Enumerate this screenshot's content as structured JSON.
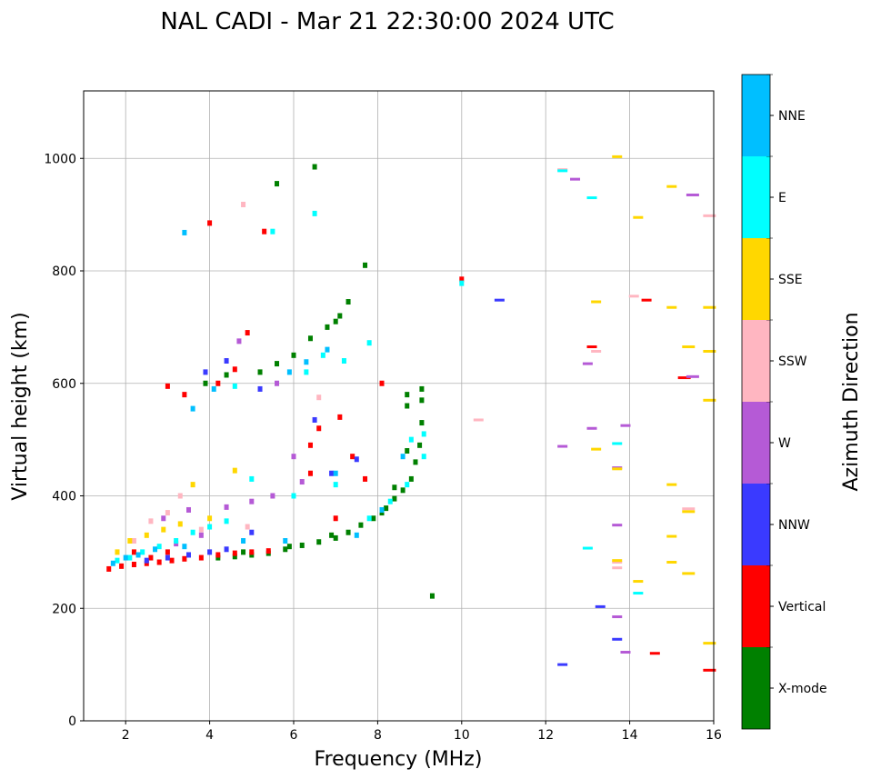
{
  "chart_data": {
    "type": "scatter",
    "title": "NAL CADI - Mar 21 22:30:00 2024 UTC",
    "xlabel": "Frequency (MHz)",
    "ylabel": "Virtual height (km)",
    "xlim": [
      1,
      16
    ],
    "ylim": [
      0,
      1120
    ],
    "xticks": [
      "2",
      "4",
      "6",
      "8",
      "10",
      "12",
      "14",
      "16"
    ],
    "xtick_values": [
      2,
      4,
      6,
      8,
      10,
      12,
      14,
      16
    ],
    "yticks": [
      "0",
      "200",
      "400",
      "600",
      "800",
      "1000"
    ],
    "ytick_values": [
      0,
      200,
      400,
      600,
      800,
      1000
    ],
    "grid": true,
    "colorbar": {
      "label": "Azimuth Direction",
      "categories": [
        "X-mode",
        "Vertical",
        "NNW",
        "W",
        "SSW",
        "SSE",
        "E",
        "NNE"
      ],
      "colors": [
        "#008000",
        "#ff0000",
        "#3a3aff",
        "#b55ad6",
        "#ffb6c1",
        "#ffd700",
        "#00ffff",
        "#00bfff"
      ]
    },
    "points_note": "each point: [frequency MHz, virtual height km, category index]",
    "points": [
      [
        4.2,
        290,
        0
      ],
      [
        4.6,
        292,
        0
      ],
      [
        5,
        295,
        0
      ],
      [
        5.4,
        298,
        0
      ],
      [
        5.8,
        305,
        0
      ],
      [
        6.2,
        312,
        0
      ],
      [
        6.6,
        318,
        0
      ],
      [
        7,
        325,
        0
      ],
      [
        7.3,
        335,
        0
      ],
      [
        7.6,
        348,
        0
      ],
      [
        7.9,
        360,
        0
      ],
      [
        8.2,
        378,
        0
      ],
      [
        8.4,
        395,
        0
      ],
      [
        8.6,
        410,
        0
      ],
      [
        8.8,
        430,
        0
      ],
      [
        8.9,
        460,
        0
      ],
      [
        9,
        490,
        0
      ],
      [
        9.05,
        530,
        0
      ],
      [
        9.05,
        570,
        0
      ],
      [
        9.05,
        590,
        0
      ],
      [
        8.7,
        480,
        0
      ],
      [
        8.7,
        560,
        0
      ],
      [
        8.7,
        580,
        0
      ],
      [
        8.4,
        415,
        0
      ],
      [
        5.2,
        620,
        0
      ],
      [
        5.6,
        635,
        0
      ],
      [
        6,
        650,
        0
      ],
      [
        6.4,
        680,
        0
      ],
      [
        6.8,
        700,
        0
      ],
      [
        7.1,
        720,
        0
      ],
      [
        7.3,
        745,
        0
      ],
      [
        7.7,
        810,
        0
      ],
      [
        6.5,
        985,
        0
      ],
      [
        5.6,
        955,
        0
      ],
      [
        9.3,
        222,
        0
      ],
      [
        4.8,
        300,
        0
      ],
      [
        5.9,
        310,
        0
      ],
      [
        6.9,
        330,
        0
      ],
      [
        8.1,
        370,
        0
      ],
      [
        3.9,
        600,
        0
      ],
      [
        4.4,
        615,
        0
      ],
      [
        7,
        710,
        0
      ],
      [
        1.6,
        270,
        1
      ],
      [
        1.9,
        275,
        1
      ],
      [
        2.2,
        278,
        1
      ],
      [
        2.5,
        280,
        1
      ],
      [
        2.8,
        282,
        1
      ],
      [
        3.1,
        285,
        1
      ],
      [
        3.4,
        288,
        1
      ],
      [
        3.8,
        290,
        1
      ],
      [
        4.2,
        295,
        1
      ],
      [
        4.6,
        298,
        1
      ],
      [
        5,
        300,
        1
      ],
      [
        5.4,
        302,
        1
      ],
      [
        6.4,
        490,
        1
      ],
      [
        6.6,
        520,
        1
      ],
      [
        7.1,
        540,
        1
      ],
      [
        7.4,
        470,
        1
      ],
      [
        7.7,
        430,
        1
      ],
      [
        8.1,
        600,
        1
      ],
      [
        4,
        885,
        1
      ],
      [
        5.3,
        870,
        1
      ],
      [
        3,
        595,
        1
      ],
      [
        3.4,
        580,
        1
      ],
      [
        4.2,
        600,
        1
      ],
      [
        4.6,
        625,
        1
      ],
      [
        4.9,
        690,
        1
      ],
      [
        10,
        785,
        1
      ],
      [
        13.1,
        665,
        1
      ],
      [
        14.4,
        748,
        1
      ],
      [
        15.3,
        610,
        1
      ],
      [
        15.9,
        90,
        1
      ],
      [
        14.6,
        120,
        1
      ],
      [
        2.2,
        300,
        1
      ],
      [
        2.6,
        290,
        1
      ],
      [
        3,
        300,
        1
      ],
      [
        6.4,
        440,
        1
      ],
      [
        7,
        360,
        1
      ],
      [
        2.5,
        285,
        2
      ],
      [
        3,
        290,
        2
      ],
      [
        3.5,
        295,
        2
      ],
      [
        4,
        300,
        2
      ],
      [
        4.4,
        305,
        2
      ],
      [
        5,
        335,
        2
      ],
      [
        3.9,
        620,
        2
      ],
      [
        4.4,
        640,
        2
      ],
      [
        5.2,
        590,
        2
      ],
      [
        6.9,
        440,
        2
      ],
      [
        7.5,
        465,
        2
      ],
      [
        10.9,
        748,
        2
      ],
      [
        13.3,
        203,
        2
      ],
      [
        13.7,
        145,
        2
      ],
      [
        12.4,
        100,
        2
      ],
      [
        6.5,
        535,
        2
      ],
      [
        3.2,
        315,
        3
      ],
      [
        3.8,
        330,
        3
      ],
      [
        4.4,
        380,
        3
      ],
      [
        5,
        390,
        3
      ],
      [
        5.5,
        400,
        3
      ],
      [
        6,
        470,
        3
      ],
      [
        6.2,
        425,
        3
      ],
      [
        3.5,
        375,
        3
      ],
      [
        2.9,
        360,
        3
      ],
      [
        13.1,
        520,
        3
      ],
      [
        12.4,
        488,
        3
      ],
      [
        13,
        635,
        3
      ],
      [
        13.9,
        525,
        3
      ],
      [
        13.7,
        450,
        3
      ],
      [
        13.7,
        348,
        3
      ],
      [
        13.7,
        185,
        3
      ],
      [
        13.9,
        122,
        3
      ],
      [
        15.5,
        935,
        3
      ],
      [
        12.7,
        963,
        3
      ],
      [
        15.5,
        612,
        3
      ],
      [
        4.7,
        675,
        3
      ],
      [
        5.6,
        600,
        3
      ],
      [
        2.2,
        320,
        4
      ],
      [
        2.6,
        355,
        4
      ],
      [
        3,
        370,
        4
      ],
      [
        3.3,
        400,
        4
      ],
      [
        4.8,
        918,
        4
      ],
      [
        6.6,
        575,
        4
      ],
      [
        10.4,
        535,
        4
      ],
      [
        12.4,
        980,
        4
      ],
      [
        13.2,
        657,
        4
      ],
      [
        14.1,
        755,
        4
      ],
      [
        15.4,
        377,
        4
      ],
      [
        15.9,
        898,
        4
      ],
      [
        13.7,
        272,
        4
      ],
      [
        13.7,
        282,
        4
      ],
      [
        3.8,
        340,
        4
      ],
      [
        4.9,
        345,
        4
      ],
      [
        1.8,
        300,
        5
      ],
      [
        2.1,
        320,
        5
      ],
      [
        2.5,
        330,
        5
      ],
      [
        2.9,
        340,
        5
      ],
      [
        3.3,
        350,
        5
      ],
      [
        3.6,
        420,
        5
      ],
      [
        4,
        360,
        5
      ],
      [
        4.6,
        445,
        5
      ],
      [
        13.7,
        1003,
        5
      ],
      [
        14.2,
        895,
        5
      ],
      [
        15,
        950,
        5
      ],
      [
        15.9,
        735,
        5
      ],
      [
        15,
        735,
        5
      ],
      [
        13.2,
        745,
        5
      ],
      [
        15.4,
        665,
        5
      ],
      [
        15.9,
        657,
        5
      ],
      [
        15.9,
        570,
        5
      ],
      [
        13.2,
        483,
        5
      ],
      [
        13.7,
        448,
        5
      ],
      [
        15,
        420,
        5
      ],
      [
        15.4,
        372,
        5
      ],
      [
        15,
        328,
        5
      ],
      [
        15,
        282,
        5
      ],
      [
        15.4,
        262,
        5
      ],
      [
        14.2,
        248,
        5
      ],
      [
        13.7,
        285,
        5
      ],
      [
        15.9,
        138,
        5
      ],
      [
        1.8,
        285,
        6
      ],
      [
        2.1,
        290,
        6
      ],
      [
        2.4,
        300,
        6
      ],
      [
        2.8,
        310,
        6
      ],
      [
        3.2,
        320,
        6
      ],
      [
        3.6,
        335,
        6
      ],
      [
        4,
        345,
        6
      ],
      [
        4.4,
        355,
        6
      ],
      [
        5,
        430,
        6
      ],
      [
        6,
        400,
        6
      ],
      [
        7,
        420,
        6
      ],
      [
        7.8,
        360,
        6
      ],
      [
        8.3,
        390,
        6
      ],
      [
        8.7,
        420,
        6
      ],
      [
        9.1,
        470,
        6
      ],
      [
        9.1,
        510,
        6
      ],
      [
        8.8,
        500,
        6
      ],
      [
        5.5,
        870,
        6
      ],
      [
        6.5,
        902,
        6
      ],
      [
        6.3,
        620,
        6
      ],
      [
        6.7,
        650,
        6
      ],
      [
        7.2,
        640,
        6
      ],
      [
        7.8,
        672,
        6
      ],
      [
        13.1,
        930,
        6
      ],
      [
        12.4,
        978,
        6
      ],
      [
        13,
        307,
        6
      ],
      [
        14.2,
        227,
        6
      ],
      [
        13.7,
        493,
        6
      ],
      [
        4.6,
        595,
        6
      ],
      [
        10,
        778,
        6
      ],
      [
        1.7,
        280,
        7
      ],
      [
        2,
        290,
        7
      ],
      [
        2.3,
        295,
        7
      ],
      [
        3.4,
        310,
        7
      ],
      [
        3.4,
        868,
        7
      ],
      [
        3.6,
        555,
        7
      ],
      [
        4.1,
        590,
        7
      ],
      [
        6.3,
        638,
        7
      ],
      [
        7,
        440,
        7
      ],
      [
        8.1,
        375,
        7
      ],
      [
        8.6,
        470,
        7
      ],
      [
        5.9,
        620,
        7
      ],
      [
        6.8,
        660,
        7
      ],
      [
        2.7,
        305,
        7
      ],
      [
        4.8,
        320,
        7
      ],
      [
        5.8,
        320,
        7
      ],
      [
        7.5,
        330,
        7
      ]
    ]
  }
}
